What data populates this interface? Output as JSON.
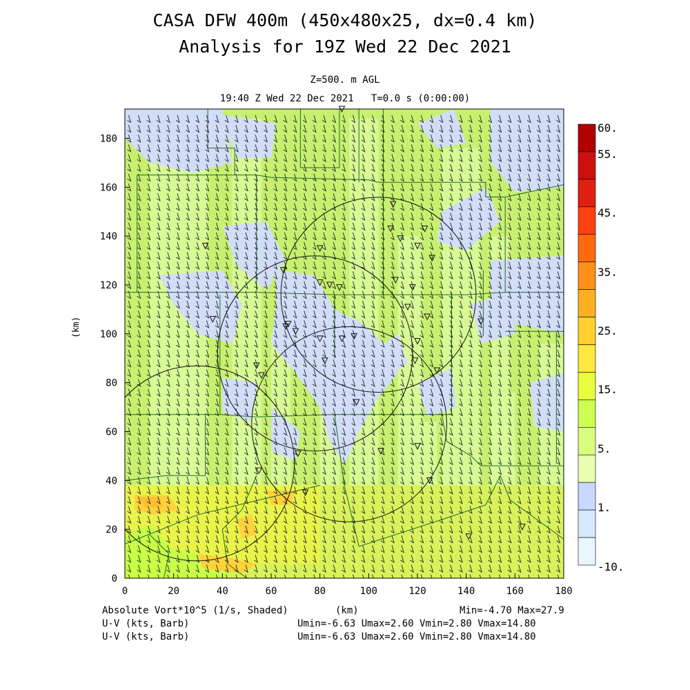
{
  "header": {
    "title_line1": "CASA DFW 400m (450x480x25, dx=0.4 km)",
    "title_line2": "Analysis for 19Z Wed 22 Dec 2021",
    "level": "Z=500. m AGL",
    "valid_time": "19:40 Z Wed 22 Dec 2021   T=0.0 s (0:00:00)"
  },
  "footer": {
    "field_label": "Absolute Vort*10^5 (1/s, Shaded)",
    "xunit": "(km)",
    "field_stats": "Min=-4.70 Max=27.9",
    "vector1_label": "U-V (kts, Barb)",
    "vector1_stats": "Umin=-6.63 Umax=2.60 Vmin=2.80 Vmax=14.80",
    "vector2_label": "U-V (kts, Barb)",
    "vector2_stats": "Umin=-6.63 Umax=2.60 Vmin=2.80 Vmax=14.80"
  },
  "chart_data": {
    "type": "heatmap",
    "xlabel": "",
    "ylabel": "(km)",
    "xlim": [
      0,
      180
    ],
    "ylim": [
      0,
      192
    ],
    "x_ticks": [
      "0",
      "20",
      "40",
      "60",
      "80",
      "100",
      "120",
      "140",
      "160",
      "180"
    ],
    "y_ticks": [
      "0",
      "20",
      "40",
      "60",
      "80",
      "100",
      "120",
      "140",
      "160",
      "180"
    ],
    "colorbar": {
      "labels": [
        "60.",
        "55.",
        "45.",
        "35.",
        "25.",
        "15.",
        "5.",
        "1.",
        "-10."
      ],
      "colors": [
        "#b00000",
        "#cc1010",
        "#e02010",
        "#ff4010",
        "#ff6a10",
        "#ff9018",
        "#ffb020",
        "#ffd030",
        "#ffe840",
        "#e8ff40",
        "#ccff50",
        "#d8ff80",
        "#e8ffb0",
        "#c8d8ff",
        "#d8e8ff",
        "#e8f6ff"
      ]
    },
    "field_colors": {
      "negative": "#d2ddf8",
      "low": "#d9fb9a",
      "mid": "#c8f070",
      "high": "#e9f44a",
      "max": "#ffd23c"
    },
    "radar_rings": [
      {
        "center_km": [
          29.5,
          47
        ],
        "radius_km": 40
      },
      {
        "center_km": [
          78,
          92
        ],
        "radius_km": 40
      },
      {
        "center_km": [
          92,
          63
        ],
        "radius_km": 40
      },
      {
        "center_km": [
          104,
          116
        ],
        "radius_km": 40
      }
    ],
    "stations_km": [
      [
        89,
        192
      ],
      [
        110,
        153
      ],
      [
        109,
        143
      ],
      [
        123,
        143
      ],
      [
        113,
        139
      ],
      [
        120,
        136
      ],
      [
        33,
        136
      ],
      [
        80,
        135
      ],
      [
        126,
        131
      ],
      [
        65,
        126
      ],
      [
        111,
        122
      ],
      [
        80,
        121
      ],
      [
        84,
        120
      ],
      [
        118,
        119
      ],
      [
        88,
        119
      ],
      [
        116,
        111
      ],
      [
        124,
        107
      ],
      [
        36,
        106
      ],
      [
        146,
        105
      ],
      [
        67,
        104
      ],
      [
        66,
        103
      ],
      [
        70,
        101
      ],
      [
        80,
        98
      ],
      [
        89,
        98
      ],
      [
        94,
        99
      ],
      [
        120,
        97
      ],
      [
        119,
        89
      ],
      [
        82,
        89
      ],
      [
        54,
        87
      ],
      [
        128,
        85
      ],
      [
        56,
        83
      ],
      [
        95,
        72
      ],
      [
        71,
        51
      ],
      [
        105,
        52
      ],
      [
        120,
        54
      ],
      [
        55,
        44
      ],
      [
        125,
        40
      ],
      [
        74,
        35
      ],
      [
        163,
        21
      ],
      [
        141,
        17
      ]
    ],
    "wind_barb": {
      "u_kts": -3.0,
      "v_kts": 10.0
    }
  }
}
